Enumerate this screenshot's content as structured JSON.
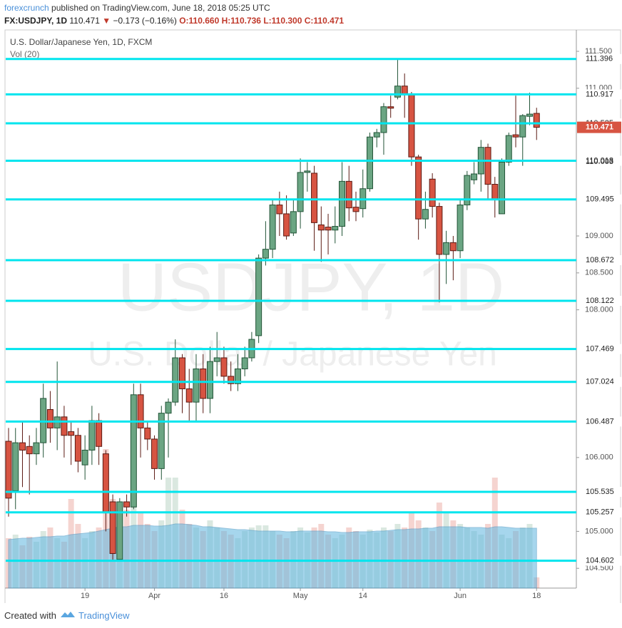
{
  "header": {
    "author": "forexcrunch",
    "published": "published on TradingView.com, June 18, 2018 05:25 UTC",
    "symbol": "FX:USDJPY, 1D",
    "last": "110.471",
    "change": "−0.173 (−0.16%)",
    "open": "O:110.660",
    "high": "H:110.736",
    "low": "L:110.300",
    "close": "C:110.471"
  },
  "footer": {
    "created": "Created with",
    "brand": "TradingView"
  },
  "chart_data": {
    "type": "candlestick",
    "title": "U.S. Dollar/Japanese Yen, 1D, FXCM",
    "subtitle": "Vol (20)",
    "watermark": "USDJPY, 1D",
    "watermark_sub": "U.S. Dollar / Japanese Yen",
    "categories": [
      null,
      null,
      null,
      null,
      null,
      null,
      null,
      null,
      null,
      null,
      null,
      "19",
      null,
      null,
      null,
      null,
      null,
      null,
      null,
      null,
      null,
      "Apr",
      null,
      null,
      null,
      null,
      null,
      null,
      null,
      null,
      null,
      "16",
      null,
      null,
      null,
      null,
      null,
      null,
      null,
      null,
      null,
      null,
      "May",
      null,
      null,
      null,
      null,
      null,
      null,
      null,
      null,
      "14",
      null,
      null,
      null,
      null,
      null,
      null,
      null,
      null,
      null,
      null,
      null,
      null,
      null,
      "Jun",
      null,
      null,
      null,
      null,
      null,
      null,
      null,
      null,
      null,
      null,
      "18"
    ],
    "open": [
      106.22,
      105.55,
      106.2,
      106.15,
      106.05,
      106.2,
      106.65,
      106.4,
      106.55,
      106.35,
      106.3,
      105.9,
      106.1,
      106.5,
      106.05,
      105.4,
      104.62,
      105.4,
      105.33,
      106.85,
      106.4,
      106.25,
      105.85,
      106.6,
      106.75,
      107.35,
      106.93,
      106.75,
      107.2,
      106.8,
      107.3,
      107.35,
      107.1,
      107.0,
      107.2,
      107.35,
      107.65,
      108.7,
      108.82,
      109.42,
      109.3,
      109.04,
      109.33,
      109.86,
      109.85,
      109.15,
      109.12,
      109.08,
      109.13,
      109.74,
      109.39,
      109.37,
      109.64,
      110.34,
      110.4,
      110.75,
      110.88,
      111.03,
      110.92,
      110.07,
      109.23,
      109.77,
      109.4,
      108.75,
      108.91,
      108.8,
      109.42,
      109.76,
      109.84,
      110.2,
      109.7,
      109.3,
      110.0,
      110.37,
      110.34,
      110.62,
      110.66
    ],
    "high": [
      106.4,
      106.4,
      106.5,
      106.3,
      106.4,
      107.0,
      106.9,
      107.3,
      106.7,
      106.5,
      106.4,
      106.3,
      106.7,
      106.6,
      106.1,
      105.5,
      105.45,
      105.5,
      107.0,
      107.0,
      106.5,
      106.3,
      106.7,
      106.8,
      107.6,
      107.4,
      107.2,
      107.4,
      107.4,
      107.5,
      107.7,
      107.5,
      107.3,
      107.4,
      107.5,
      107.7,
      108.75,
      109.2,
      109.5,
      109.6,
      109.55,
      109.5,
      110.05,
      110.0,
      109.95,
      109.4,
      109.3,
      109.4,
      110.0,
      109.95,
      109.6,
      109.9,
      110.4,
      110.45,
      110.8,
      110.9,
      111.4,
      111.2,
      110.95,
      110.1,
      109.6,
      109.85,
      109.45,
      109.07,
      109.0,
      109.5,
      109.88,
      110.0,
      110.3,
      110.25,
      109.8,
      110.05,
      110.4,
      110.9,
      110.65,
      110.94,
      110.736
    ],
    "low": [
      105.2,
      105.3,
      105.6,
      105.5,
      105.9,
      106.0,
      106.2,
      106.1,
      106.0,
      105.9,
      105.8,
      105.7,
      105.9,
      105.9,
      105.0,
      104.6,
      104.6,
      105.2,
      105.3,
      106.0,
      106.1,
      105.7,
      105.7,
      106.0,
      106.7,
      106.6,
      106.5,
      106.5,
      106.6,
      106.6,
      107.1,
      107.0,
      106.9,
      106.9,
      107.1,
      107.3,
      107.55,
      108.6,
      108.7,
      109.0,
      108.95,
      109.0,
      109.1,
      109.6,
      108.8,
      108.65,
      108.75,
      108.9,
      109.0,
      109.2,
      109.2,
      109.25,
      109.6,
      110.2,
      110.1,
      110.6,
      110.85,
      110.6,
      109.95,
      108.95,
      109.1,
      109.25,
      108.1,
      108.35,
      108.4,
      108.7,
      109.35,
      109.7,
      109.6,
      109.5,
      109.25,
      109.3,
      109.95,
      110.2,
      109.95,
      110.5,
      110.3
    ],
    "close": [
      105.45,
      106.2,
      106.1,
      106.05,
      106.2,
      106.8,
      106.4,
      106.55,
      106.3,
      106.3,
      105.95,
      106.1,
      106.5,
      106.15,
      105.25,
      104.7,
      105.4,
      105.33,
      106.85,
      106.4,
      106.25,
      105.85,
      106.6,
      106.75,
      107.35,
      106.93,
      106.75,
      107.2,
      106.8,
      107.3,
      107.35,
      107.1,
      107.0,
      107.2,
      107.35,
      107.6,
      108.7,
      108.82,
      109.42,
      109.3,
      109.0,
      109.33,
      109.86,
      109.88,
      109.18,
      109.08,
      109.08,
      109.13,
      109.74,
      109.38,
      109.33,
      109.64,
      110.34,
      110.4,
      110.75,
      110.73,
      111.03,
      110.92,
      110.07,
      109.23,
      109.36,
      109.4,
      108.75,
      108.91,
      108.8,
      109.42,
      109.82,
      109.84,
      110.2,
      109.7,
      109.5,
      110.0,
      110.36,
      110.34,
      110.63,
      110.65,
      110.471
    ],
    "volume": [
      70,
      75,
      60,
      72,
      65,
      80,
      85,
      70,
      65,
      125,
      90,
      70,
      80,
      85,
      195,
      125,
      100,
      110,
      130,
      105,
      90,
      80,
      95,
      155,
      155,
      110,
      90,
      85,
      80,
      95,
      85,
      80,
      75,
      70,
      80,
      85,
      88,
      88,
      80,
      75,
      70,
      80,
      85,
      78,
      85,
      90,
      75,
      70,
      75,
      85,
      80,
      75,
      82,
      78,
      85,
      80,
      90,
      85,
      105,
      95,
      85,
      80,
      120,
      105,
      95,
      90,
      85,
      80,
      75,
      90,
      155,
      75,
      70,
      80,
      85,
      90,
      15
    ],
    "volume_ma": [
      68,
      69,
      70,
      70,
      71,
      72,
      72,
      73,
      73,
      75,
      76,
      77,
      78,
      80,
      82,
      84,
      86,
      86,
      88,
      88,
      88,
      87,
      87,
      88,
      90,
      90,
      89,
      88,
      86,
      86,
      85,
      84,
      83,
      82,
      82,
      81,
      80,
      80,
      80,
      80,
      79,
      79,
      80,
      80,
      80,
      80,
      79,
      79,
      78,
      78,
      79,
      79,
      79,
      80,
      80,
      81,
      82,
      82,
      83,
      83,
      84,
      84,
      86,
      86,
      86,
      86,
      85,
      85,
      85,
      84,
      86,
      86,
      85,
      84,
      84,
      84,
      84
    ],
    "up_color": "#6ba583",
    "down_color": "#d75442",
    "level_color": "#00e5ee",
    "levels": [
      111.396,
      110.917,
      110.525,
      110.018,
      109.495,
      108.672,
      108.122,
      107.469,
      107.024,
      106.487,
      105.535,
      105.257,
      104.602
    ],
    "marker": 110.003,
    "last_price": 110.471,
    "ylim": [
      104.232,
      111.616
    ],
    "yticks": [
      {
        "value": 104.5,
        "label": "104.500"
      },
      {
        "value": 105,
        "label": "105.000"
      },
      {
        "value": 106,
        "label": "106.000"
      },
      {
        "value": 108,
        "label": "108.000"
      },
      {
        "value": 108.5,
        "label": "108.500"
      },
      {
        "value": 109,
        "label": "109.000"
      },
      {
        "value": 111,
        "label": "111.000"
      },
      {
        "value": 111.5,
        "label": "111.500"
      }
    ]
  }
}
